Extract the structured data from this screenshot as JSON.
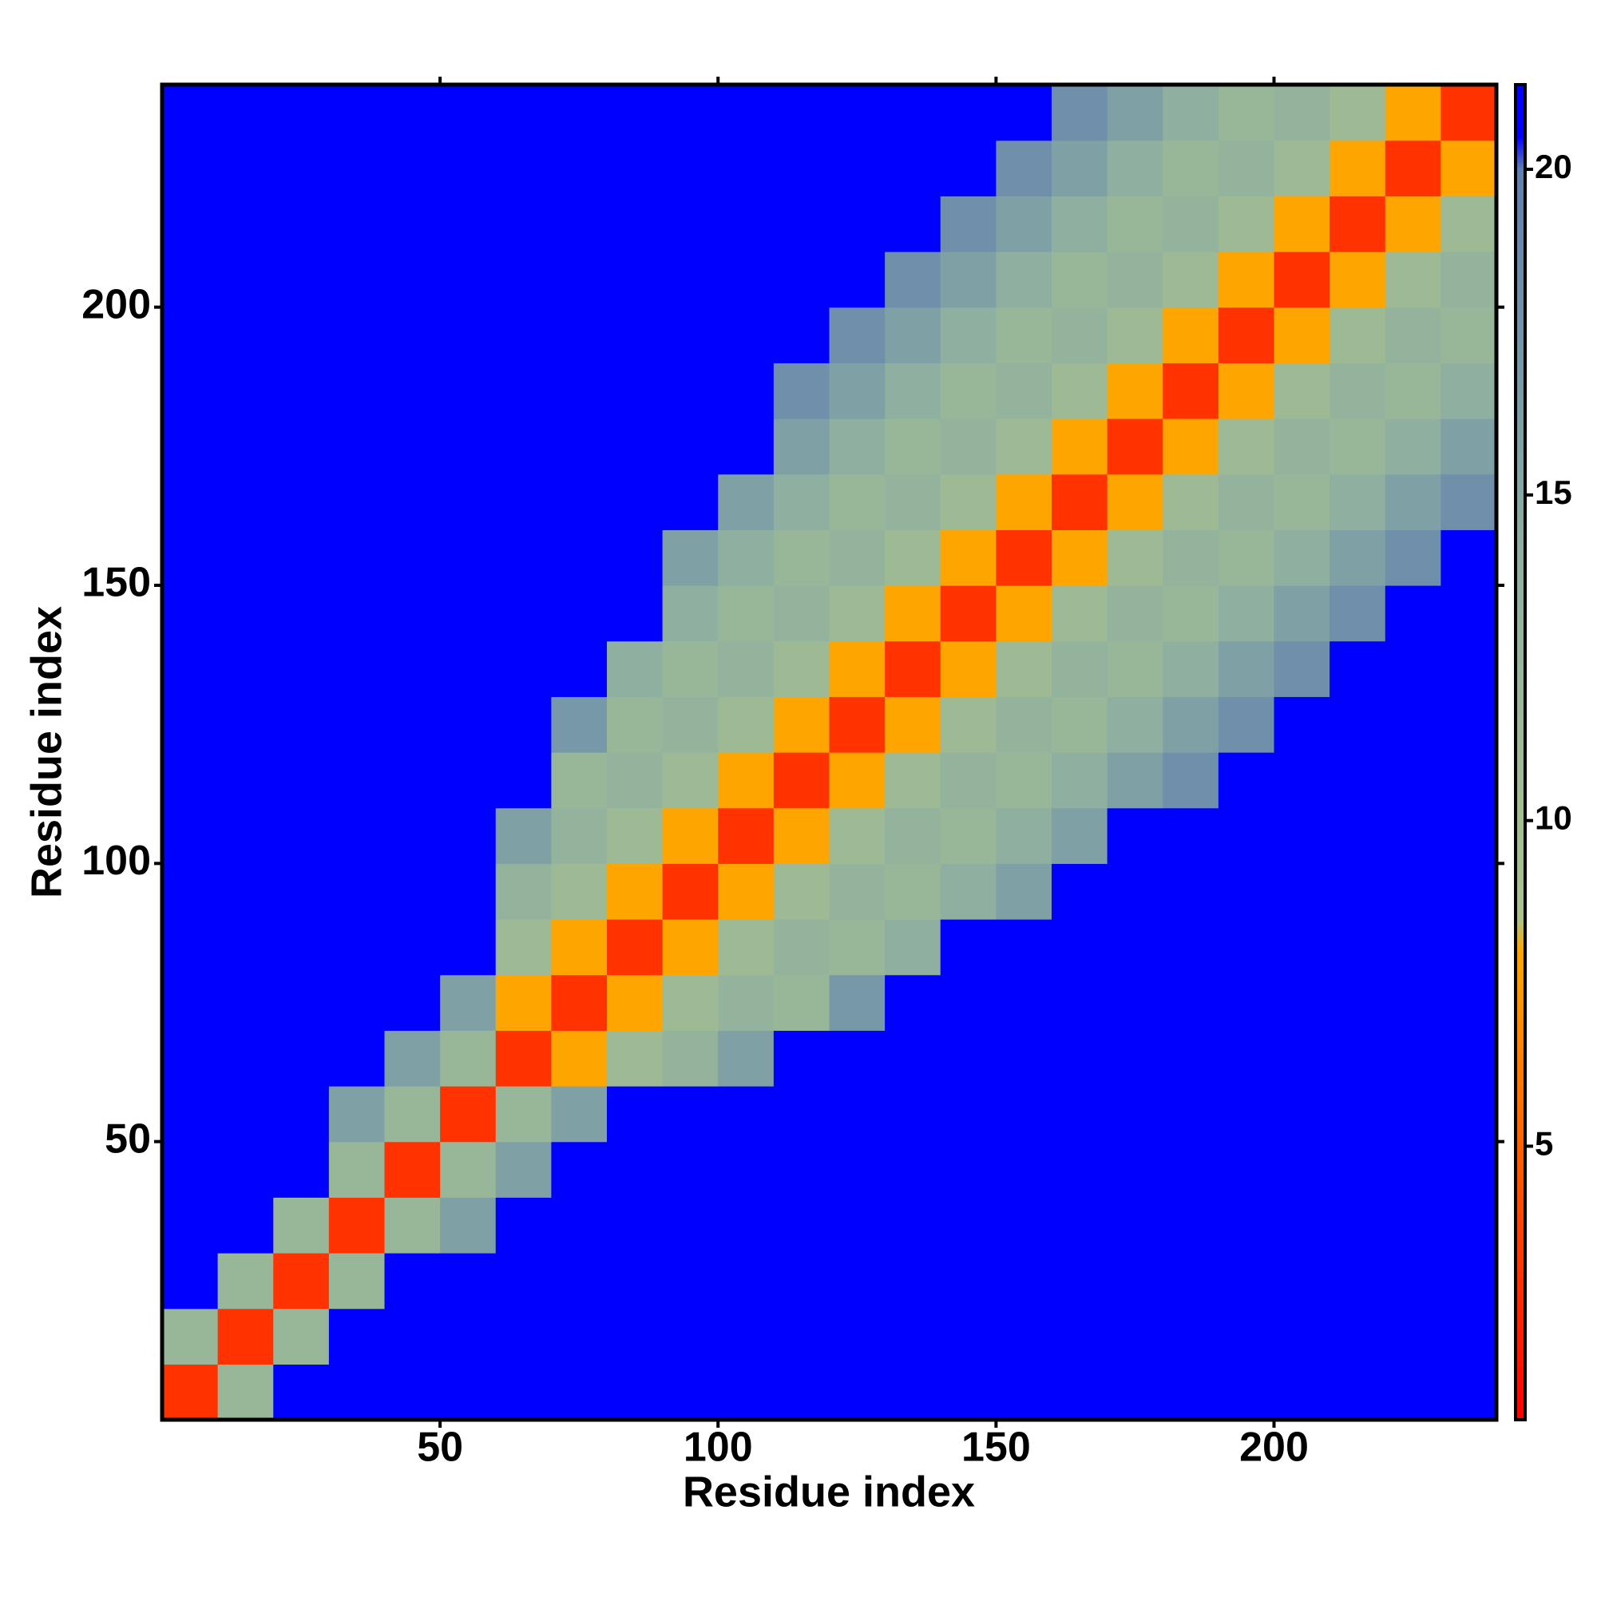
{
  "chart_data": {
    "type": "heatmap",
    "xlabel": "Residue index",
    "ylabel": "Residue index",
    "x": [
      5,
      15,
      25,
      35,
      45,
      55,
      65,
      75,
      85,
      95,
      105,
      115,
      125,
      135,
      145,
      155,
      165,
      175,
      185,
      195,
      205,
      215,
      225,
      235
    ],
    "y": [
      5,
      15,
      25,
      35,
      45,
      55,
      65,
      75,
      85,
      95,
      105,
      115,
      125,
      135,
      145,
      155,
      165,
      175,
      185,
      195,
      205,
      215,
      225,
      235
    ],
    "z": [
      [
        3,
        12,
        21,
        21,
        21,
        21,
        21,
        21,
        21,
        21,
        21,
        21,
        21,
        21,
        21,
        21,
        21,
        21,
        21,
        21,
        21,
        21,
        21,
        21
      ],
      [
        12,
        3,
        12,
        21,
        21,
        21,
        21,
        21,
        21,
        21,
        21,
        21,
        21,
        21,
        21,
        21,
        21,
        21,
        21,
        21,
        21,
        21,
        21,
        21
      ],
      [
        21,
        12,
        3,
        12,
        21,
        21,
        21,
        21,
        21,
        21,
        21,
        21,
        21,
        21,
        21,
        21,
        21,
        21,
        21,
        21,
        21,
        21,
        21,
        21
      ],
      [
        21,
        21,
        12,
        3,
        12,
        16,
        21,
        21,
        21,
        21,
        21,
        21,
        21,
        21,
        21,
        21,
        21,
        21,
        21,
        21,
        21,
        21,
        21,
        21
      ],
      [
        21,
        21,
        21,
        12,
        3,
        12,
        16,
        21,
        21,
        21,
        21,
        21,
        21,
        21,
        21,
        21,
        21,
        21,
        21,
        21,
        21,
        21,
        21,
        21
      ],
      [
        21,
        21,
        21,
        16,
        12,
        3,
        12,
        16,
        21,
        21,
        21,
        21,
        21,
        21,
        21,
        21,
        21,
        21,
        21,
        21,
        21,
        21,
        21,
        21
      ],
      [
        21,
        21,
        21,
        21,
        16,
        12,
        3,
        8,
        11,
        13,
        16,
        21,
        21,
        21,
        21,
        21,
        21,
        21,
        21,
        21,
        21,
        21,
        21,
        21
      ],
      [
        21,
        21,
        21,
        21,
        21,
        16,
        8,
        3,
        8,
        11,
        13,
        12,
        17,
        21,
        21,
        21,
        21,
        21,
        21,
        21,
        21,
        21,
        21,
        21
      ],
      [
        21,
        21,
        21,
        21,
        21,
        21,
        11,
        8,
        3,
        8,
        11,
        13,
        12,
        14,
        21,
        21,
        21,
        21,
        21,
        21,
        21,
        21,
        21,
        21
      ],
      [
        21,
        21,
        21,
        21,
        21,
        21,
        13,
        11,
        8,
        3,
        8,
        11,
        13,
        12,
        14,
        16,
        21,
        21,
        21,
        21,
        21,
        21,
        21,
        21
      ],
      [
        21,
        21,
        21,
        21,
        21,
        21,
        16,
        13,
        11,
        8,
        3,
        8,
        11,
        13,
        12,
        14,
        16,
        21,
        21,
        21,
        21,
        21,
        21,
        21
      ],
      [
        21,
        21,
        21,
        21,
        21,
        21,
        21,
        12,
        13,
        11,
        8,
        3,
        8,
        11,
        13,
        12,
        14,
        16,
        18,
        21,
        21,
        21,
        21,
        21
      ],
      [
        21,
        21,
        21,
        21,
        21,
        21,
        21,
        17,
        12,
        13,
        11,
        8,
        3,
        8,
        11,
        13,
        12,
        14,
        16,
        18,
        21,
        21,
        21,
        21
      ],
      [
        21,
        21,
        21,
        21,
        21,
        21,
        21,
        21,
        14,
        12,
        13,
        11,
        8,
        3,
        8,
        11,
        13,
        12,
        14,
        16,
        18,
        21,
        21,
        21
      ],
      [
        21,
        21,
        21,
        21,
        21,
        21,
        21,
        21,
        21,
        14,
        12,
        13,
        11,
        8,
        3,
        8,
        11,
        13,
        12,
        14,
        16,
        18,
        21,
        21
      ],
      [
        21,
        21,
        21,
        21,
        21,
        21,
        21,
        21,
        21,
        16,
        14,
        12,
        13,
        11,
        8,
        3,
        8,
        11,
        13,
        12,
        14,
        16,
        18,
        21
      ],
      [
        21,
        21,
        21,
        21,
        21,
        21,
        21,
        21,
        21,
        21,
        16,
        14,
        12,
        13,
        11,
        8,
        3,
        8,
        11,
        13,
        12,
        14,
        16,
        18
      ],
      [
        21,
        21,
        21,
        21,
        21,
        21,
        21,
        21,
        21,
        21,
        21,
        16,
        14,
        12,
        13,
        11,
        8,
        3,
        8,
        11,
        13,
        12,
        14,
        16
      ],
      [
        21,
        21,
        21,
        21,
        21,
        21,
        21,
        21,
        21,
        21,
        21,
        18,
        16,
        14,
        12,
        13,
        11,
        8,
        3,
        8,
        11,
        13,
        12,
        14
      ],
      [
        21,
        21,
        21,
        21,
        21,
        21,
        21,
        21,
        21,
        21,
        21,
        21,
        18,
        16,
        14,
        12,
        13,
        11,
        8,
        3,
        8,
        11,
        13,
        12
      ],
      [
        21,
        21,
        21,
        21,
        21,
        21,
        21,
        21,
        21,
        21,
        21,
        21,
        21,
        18,
        16,
        14,
        12,
        13,
        11,
        8,
        3,
        8,
        11,
        13
      ],
      [
        21,
        21,
        21,
        21,
        21,
        21,
        21,
        21,
        21,
        21,
        21,
        21,
        21,
        21,
        18,
        16,
        14,
        12,
        13,
        11,
        8,
        3,
        8,
        11
      ],
      [
        21,
        21,
        21,
        21,
        21,
        21,
        21,
        21,
        21,
        21,
        21,
        21,
        21,
        21,
        21,
        18,
        16,
        14,
        12,
        13,
        11,
        8,
        3,
        8
      ],
      [
        21,
        21,
        21,
        21,
        21,
        21,
        21,
        21,
        21,
        21,
        21,
        21,
        21,
        21,
        21,
        21,
        18,
        16,
        14,
        12,
        13,
        11,
        8,
        3
      ]
    ],
    "xlim": [
      0,
      240
    ],
    "ylim": [
      0,
      240
    ],
    "xticks": [
      50,
      100,
      150,
      200
    ],
    "yticks": [
      50,
      100,
      150,
      200
    ],
    "zlim": [
      0.8,
      21.3
    ],
    "zticks": [
      5,
      10,
      15,
      20
    ],
    "colorscale": [
      [
        0.8,
        "#ff0000"
      ],
      [
        8,
        "#ffa500"
      ],
      [
        8.5,
        "#a9c38c"
      ],
      [
        14,
        "#8fb0a0"
      ],
      [
        20,
        "#5f7fb0"
      ],
      [
        20.5,
        "#0000ff"
      ],
      [
        21.3,
        "#0000ff"
      ]
    ]
  }
}
